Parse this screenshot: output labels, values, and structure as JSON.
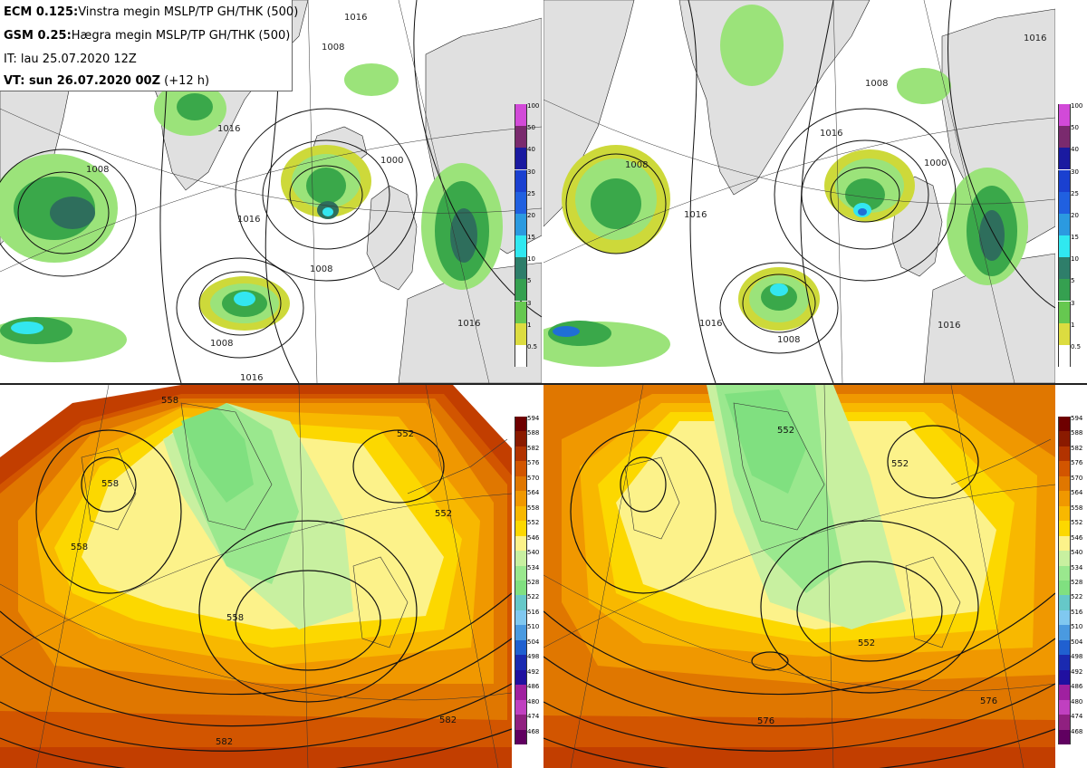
{
  "header": {
    "line1_model": "ECM 0.125:",
    "line1_desc": "Vinstra megin MSLP/TP GH/THK (500)",
    "line2_model": "GSM 0.25:",
    "line2_desc": "Hægra megin MSLP/TP GH/THK (500)",
    "line3": "IT: lau 25.07.2020 12Z",
    "line4_label": "VT: sun 26.07.2020 00Z",
    "line4_extra": "(+12 h)"
  },
  "colors": {
    "land": "#e0e0e0",
    "sea": "#ffffff",
    "precip_light": "#cdd93a",
    "precip_green": "#9be37a",
    "precip_mid": "#3aa84a",
    "precip_dark": "#2e6e5c",
    "precip_cyan": "#33e6f0",
    "precip_blue": "#1f6fd6"
  },
  "precip_colorbar": {
    "levels": [
      "100",
      "50",
      "40",
      "30",
      "25",
      "20",
      "15",
      "10",
      "5",
      "3",
      "1",
      "0.5"
    ],
    "colors": [
      "#d24ad8",
      "#7a2a6e",
      "#1a1aa0",
      "#1a40d0",
      "#2060e0",
      "#2b9ae0",
      "#30e8f0",
      "#2e7e6a",
      "#35a050",
      "#66c850",
      "#dcdc40",
      "#ffffff"
    ]
  },
  "gh_colorbar": {
    "levels": [
      "594",
      "588",
      "582",
      "576",
      "570",
      "564",
      "558",
      "552",
      "546",
      "540",
      "534",
      "528",
      "522",
      "516",
      "510",
      "504",
      "498",
      "492",
      "486",
      "480",
      "474",
      "468"
    ],
    "colors": [
      "#6e0000",
      "#8a1a00",
      "#b23300",
      "#d25500",
      "#e07700",
      "#f09800",
      "#f8b800",
      "#fcd800",
      "#fcf28a",
      "#c8f0a0",
      "#9ae88e",
      "#80e080",
      "#66c8c8",
      "#80c8f0",
      "#4a9ae0",
      "#2060d0",
      "#1a2ab0",
      "#2010a0",
      "#a020a0",
      "#c040c0",
      "#902080",
      "#600060"
    ]
  },
  "labels": {
    "tl": [
      "1016",
      "1008",
      "1016",
      "1008",
      "1000",
      "1016",
      "1008",
      "1008",
      "1016",
      "1016"
    ],
    "tr": [
      "1016",
      "1008",
      "1016",
      "1000",
      "1008",
      "1016",
      "1008",
      "1016",
      "1016"
    ],
    "bl": [
      "558",
      "558",
      "552",
      "558",
      "558",
      "552",
      "582",
      "582"
    ],
    "br": [
      "552",
      "552",
      "552",
      "576",
      "576"
    ]
  }
}
